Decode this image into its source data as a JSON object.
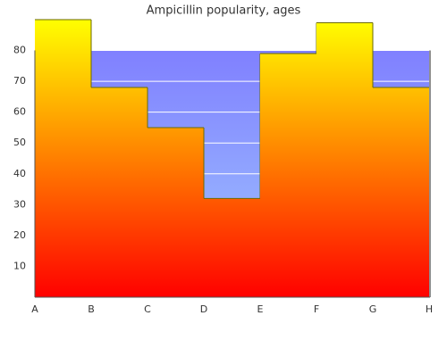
{
  "chart_data": {
    "type": "step-area",
    "title": "Ampicillin popularity, ages",
    "categories": [
      "A",
      "B",
      "C",
      "D",
      "E",
      "F",
      "G",
      "H"
    ],
    "values": [
      90,
      68,
      55,
      32,
      79,
      89,
      68,
      null
    ],
    "fill_gradient": [
      "#ffff00",
      "#ff0000"
    ],
    "background_gradient": [
      "#8080ff",
      "#a0c8ff"
    ],
    "outline_color": "#6b6b00",
    "ylim": [
      0,
      90
    ],
    "yticks": [
      10,
      20,
      30,
      40,
      50,
      60,
      70,
      80
    ],
    "grid": true
  }
}
